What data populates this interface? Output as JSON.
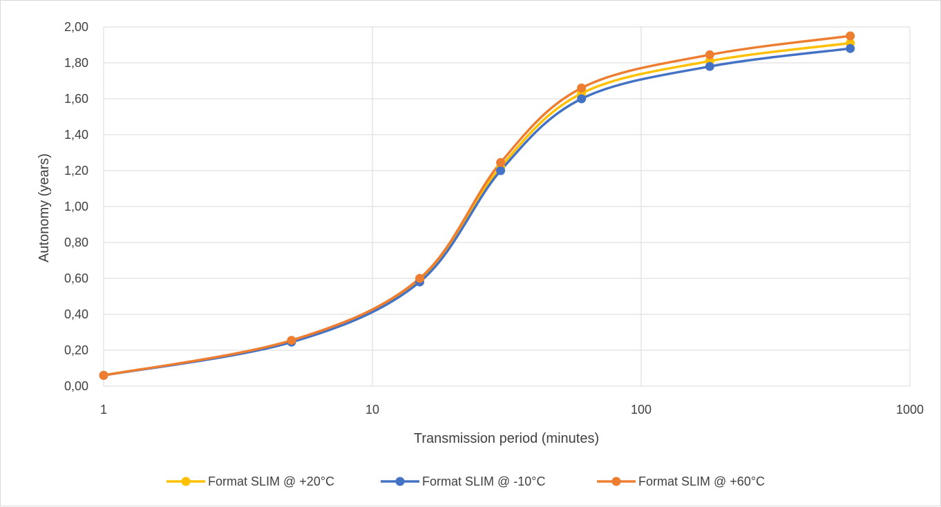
{
  "chart_data": {
    "type": "line",
    "title": "",
    "xlabel": "Transmission period (minutes)",
    "ylabel": "Autonomy (years)",
    "x_scale": "log",
    "xlim": [
      1,
      1000
    ],
    "ylim": [
      0,
      2
    ],
    "x_ticks": [
      1,
      10,
      100,
      1000
    ],
    "x_tick_labels": [
      "1",
      "10",
      "100",
      "1000"
    ],
    "y_ticks": [
      0,
      0.2,
      0.4,
      0.6,
      0.8,
      1.0,
      1.2,
      1.4,
      1.6,
      1.8,
      2.0
    ],
    "y_tick_labels": [
      "0,00",
      "0,20",
      "0,40",
      "0,60",
      "0,80",
      "1,00",
      "1,20",
      "1,40",
      "1,60",
      "1,80",
      "2,00"
    ],
    "grid": true,
    "legend_position": "bottom",
    "smooth": true,
    "x": [
      1,
      5,
      15,
      30,
      60,
      180,
      600
    ],
    "series": [
      {
        "name": "Format SLIM @ +20°C",
        "color": "#FFC000",
        "values": [
          0.06,
          0.25,
          0.59,
          1.22,
          1.63,
          1.81,
          1.91
        ]
      },
      {
        "name": "Format SLIM @ -10°C",
        "color": "#4472C4",
        "values": [
          0.06,
          0.245,
          0.58,
          1.2,
          1.6,
          1.78,
          1.88
        ]
      },
      {
        "name": "Format SLIM @ +60°C",
        "color": "#ED7D31",
        "values": [
          0.06,
          0.255,
          0.6,
          1.245,
          1.66,
          1.845,
          1.95
        ]
      }
    ]
  }
}
